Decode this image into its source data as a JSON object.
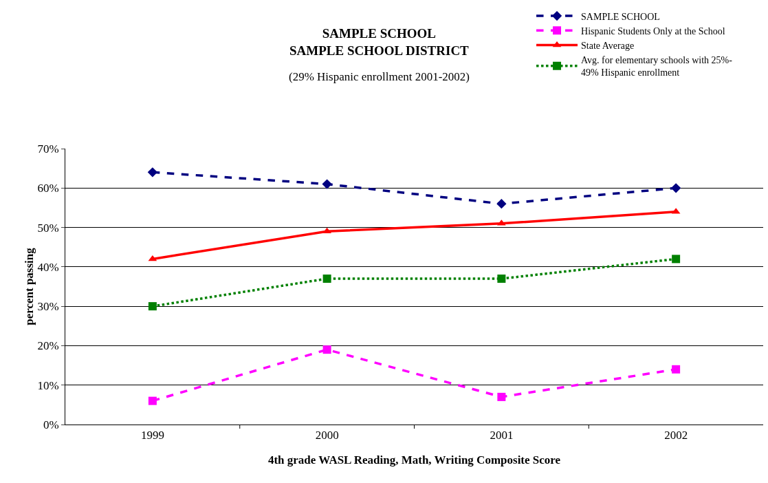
{
  "chart_data": {
    "type": "line",
    "title": "SAMPLE SCHOOL\nSAMPLE SCHOOL DISTRICT",
    "subtitle": "(29% Hispanic enrollment 2001-2002)",
    "xlabel": "4th grade WASL Reading, Math, Writing Composite Score",
    "ylabel": "percent passing",
    "categories": [
      "1999",
      "2000",
      "2001",
      "2002"
    ],
    "series": [
      {
        "name": "SAMPLE SCHOOL",
        "color": "#000080",
        "values": [
          64,
          61,
          56,
          60
        ],
        "marker": "diamond",
        "line_style": "dashed"
      },
      {
        "name": "Hispanic Students Only at the School",
        "color": "#ff00ff",
        "values": [
          6,
          19,
          7,
          14
        ],
        "marker": "square",
        "line_style": "dashed"
      },
      {
        "name": "State Average",
        "color": "#ff0000",
        "values": [
          42,
          49,
          51,
          54
        ],
        "marker": "triangle",
        "line_style": "solid"
      },
      {
        "name": "Avg. for elementary schools with 25%-49% Hispanic enrollment",
        "color": "#008000",
        "values": [
          30,
          37,
          37,
          42
        ],
        "marker": "square",
        "line_style": "dotted"
      }
    ],
    "ylim": [
      0,
      70
    ],
    "yticks": [
      {
        "value": 0,
        "label": "0%"
      },
      {
        "value": 10,
        "label": "10%"
      },
      {
        "value": 20,
        "label": "20%"
      },
      {
        "value": 30,
        "label": "30%"
      },
      {
        "value": 40,
        "label": "40%"
      },
      {
        "value": 50,
        "label": "50%"
      },
      {
        "value": 60,
        "label": "60%"
      },
      {
        "value": 70,
        "label": "70%"
      }
    ],
    "grid": "y",
    "legend": "top right"
  }
}
